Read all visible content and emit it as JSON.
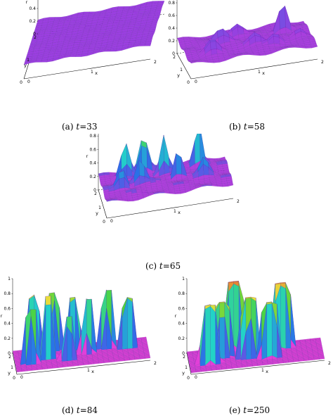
{
  "figure": {
    "panels": [
      {
        "id": "a",
        "caption_label": "(a)",
        "caption_var": "t",
        "caption_eq": "=",
        "caption_value": "33",
        "z_ticks": [
          "0",
          "0.2",
          "0.4",
          "0.6",
          "0.8",
          "1"
        ],
        "z_label": "r",
        "y_ticks": [
          "2",
          "1",
          "0"
        ],
        "y_label": "y",
        "x_ticks": [
          "0",
          "1",
          "2"
        ],
        "x_label": "x",
        "surface": "flat"
      },
      {
        "id": "b",
        "caption_label": "(b)",
        "caption_var": "t",
        "caption_eq": "=",
        "caption_value": "58",
        "z_ticks": [
          "0",
          "0.2",
          "0.4",
          "0.6",
          "0.8",
          "1"
        ],
        "z_label": "r",
        "y_ticks": [
          "2",
          "1",
          "0"
        ],
        "y_label": "y",
        "x_ticks": [
          "0",
          "1",
          "2"
        ],
        "x_label": "x",
        "surface": "peaks"
      },
      {
        "id": "c",
        "caption_label": "(c)",
        "caption_var": "t",
        "caption_eq": "=",
        "caption_value": "65",
        "z_ticks": [
          "0",
          "0.2",
          "0.4",
          "0.6",
          "0.8",
          "1"
        ],
        "z_label": "r",
        "y_ticks": [
          "2",
          "1",
          "0"
        ],
        "y_label": "y",
        "x_ticks": [
          "0",
          "1",
          "2"
        ],
        "x_label": "x",
        "surface": "tall-peaks"
      },
      {
        "id": "d",
        "caption_label": "(d)",
        "caption_var": "t",
        "caption_eq": "=",
        "caption_value": "84",
        "z_ticks": [
          "0",
          "0.2",
          "0.4",
          "0.6",
          "0.8",
          "1"
        ],
        "z_label": "r",
        "y_ticks": [
          "2",
          "1",
          "0"
        ],
        "y_label": "y",
        "x_ticks": [
          "0",
          "1",
          "2"
        ],
        "x_label": "x",
        "surface": "columns"
      },
      {
        "id": "e",
        "caption_label": "(e)",
        "caption_var": "t",
        "caption_eq": "=",
        "caption_value": "250",
        "z_ticks": [
          "0",
          "0.2",
          "0.4",
          "0.6",
          "0.8",
          "1"
        ],
        "z_label": "r",
        "y_ticks": [
          "2",
          "1",
          "0"
        ],
        "y_label": "y",
        "x_ticks": [
          "0",
          "1",
          "2"
        ],
        "x_label": "x",
        "surface": "mesas"
      }
    ],
    "colors": {
      "base": "#9a3fe0",
      "base_dark": "#5b1f9a",
      "mid": "#2a6fe8",
      "cyan": "#22d3c8",
      "green": "#4fd43a",
      "yellow": "#e8e23a",
      "red": "#e8322a",
      "magenta": "#e23fd8"
    }
  }
}
